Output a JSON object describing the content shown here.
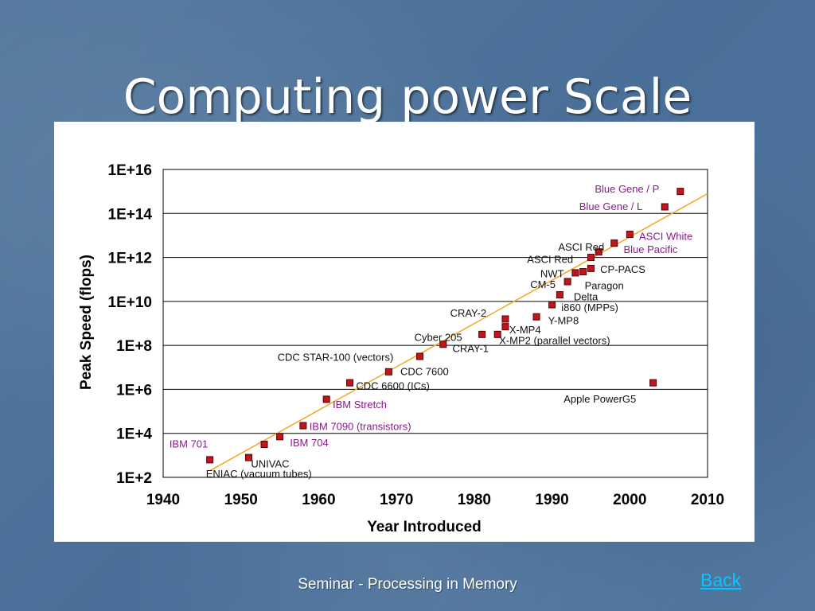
{
  "slide": {
    "title": "Computing power Scale",
    "footer": "Seminar - Processing in Memory",
    "back_label": "Back"
  },
  "colors": {
    "marker": "#c0151c",
    "trend": "#f5a623",
    "label_dark": "#111111",
    "label_purple": "#8b1a8b"
  },
  "chart_data": {
    "type": "scatter",
    "title": "",
    "xlabel": "Year Introduced",
    "ylabel": "Peak Speed (flops)",
    "xlim": [
      1940,
      2010
    ],
    "ylim_log10": [
      2,
      16
    ],
    "yscale": "log",
    "grid": "horizontal",
    "x_ticks": [
      "1940",
      "1950",
      "1960",
      "1970",
      "1980",
      "1990",
      "2000",
      "2010"
    ],
    "y_ticks": [
      "1E+2",
      "1E+4",
      "1E+6",
      "1E+8",
      "1E+10",
      "1E+12",
      "1E+14",
      "1E+16"
    ],
    "trend_line": {
      "from": [
        1946,
        2.3
      ],
      "to": [
        2010,
        14.9
      ]
    },
    "points": [
      {
        "x": 1946,
        "log10_y": 2.8
      },
      {
        "x": 1951,
        "log10_y": 2.9
      },
      {
        "x": 1953,
        "log10_y": 3.5
      },
      {
        "x": 1955,
        "log10_y": 3.85
      },
      {
        "x": 1958,
        "log10_y": 4.35
      },
      {
        "x": 1961,
        "log10_y": 5.55
      },
      {
        "x": 1964,
        "log10_y": 6.3
      },
      {
        "x": 1969,
        "log10_y": 6.8
      },
      {
        "x": 1973,
        "log10_y": 7.5
      },
      {
        "x": 1976,
        "log10_y": 8.05
      },
      {
        "x": 1981,
        "log10_y": 8.5
      },
      {
        "x": 1983,
        "log10_y": 8.5
      },
      {
        "x": 1984,
        "log10_y": 8.85
      },
      {
        "x": 1984,
        "log10_y": 9.2
      },
      {
        "x": 1988,
        "log10_y": 9.3
      },
      {
        "x": 1990,
        "log10_y": 9.85
      },
      {
        "x": 1991,
        "log10_y": 10.3
      },
      {
        "x": 1992,
        "log10_y": 10.9
      },
      {
        "x": 1993,
        "log10_y": 11.3
      },
      {
        "x": 1994,
        "log10_y": 11.35
      },
      {
        "x": 1995,
        "log10_y": 11.5
      },
      {
        "x": 1995,
        "log10_y": 12.0
      },
      {
        "x": 1996,
        "log10_y": 12.25
      },
      {
        "x": 1998,
        "log10_y": 12.65
      },
      {
        "x": 2000,
        "log10_y": 13.05
      },
      {
        "x": 2003,
        "log10_y": 6.3
      },
      {
        "x": 2004.5,
        "log10_y": 14.3
      },
      {
        "x": 2006.5,
        "log10_y": 15.0
      }
    ],
    "annotations": [
      {
        "text": "ENIAC (vacuum tubes)",
        "x": 1945.5,
        "log10_y": 2.15,
        "color": "dark"
      },
      {
        "text": "UNIVAC",
        "x": 1951.3,
        "log10_y": 2.6,
        "color": "dark"
      },
      {
        "text": "IBM 701",
        "x": 1940.8,
        "log10_y": 3.5,
        "color": "purple"
      },
      {
        "text": "IBM 704",
        "x": 1956.3,
        "log10_y": 3.55,
        "color": "purple"
      },
      {
        "text": "IBM 7090 (transistors)",
        "x": 1958.8,
        "log10_y": 4.3,
        "color": "purple"
      },
      {
        "text": "IBM Stretch",
        "x": 1961.8,
        "log10_y": 5.3,
        "color": "purple"
      },
      {
        "text": "CDC 6600 (ICs)",
        "x": 1964.8,
        "log10_y": 6.15,
        "color": "dark"
      },
      {
        "text": "CDC 7600",
        "x": 1970.5,
        "log10_y": 6.8,
        "color": "dark"
      },
      {
        "text": "CDC STAR-100 (vectors)",
        "x": 1954.7,
        "log10_y": 7.45,
        "color": "dark"
      },
      {
        "text": "CRAY-1",
        "x": 1977.2,
        "log10_y": 7.85,
        "color": "dark"
      },
      {
        "text": "Cyber 205",
        "x": 1972.3,
        "log10_y": 8.35,
        "color": "dark"
      },
      {
        "text": "X-MP2 (parallel vectors)",
        "x": 1983.2,
        "log10_y": 8.2,
        "color": "dark"
      },
      {
        "text": "X-MP4",
        "x": 1984.5,
        "log10_y": 8.7,
        "color": "dark"
      },
      {
        "text": "CRAY-2",
        "x": 1976.9,
        "log10_y": 9.45,
        "color": "dark"
      },
      {
        "text": "Y-MP8",
        "x": 1989.5,
        "log10_y": 9.1,
        "color": "dark"
      },
      {
        "text": "i860 (MPPs)",
        "x": 1991.2,
        "log10_y": 9.7,
        "color": "dark"
      },
      {
        "text": "Delta",
        "x": 1992.8,
        "log10_y": 10.2,
        "color": "dark"
      },
      {
        "text": "CM-5",
        "x": 1987.2,
        "log10_y": 10.75,
        "color": "dark"
      },
      {
        "text": "Paragon",
        "x": 1994.2,
        "log10_y": 10.7,
        "color": "dark"
      },
      {
        "text": "NWT",
        "x": 1988.5,
        "log10_y": 11.25,
        "color": "dark"
      },
      {
        "text": "CP-PACS",
        "x": 1996.2,
        "log10_y": 11.45,
        "color": "dark"
      },
      {
        "text": "ASCI Red",
        "x": 1986.8,
        "log10_y": 11.9,
        "color": "dark"
      },
      {
        "text": "ASCI Red",
        "x": 1990.8,
        "log10_y": 12.45,
        "color": "dark"
      },
      {
        "text": "Blue Pacific",
        "x": 1999.2,
        "log10_y": 12.35,
        "color": "purple"
      },
      {
        "text": "ASCI White",
        "x": 2001.2,
        "log10_y": 12.95,
        "color": "purple"
      },
      {
        "text": "Blue Gene / L",
        "x": 1993.5,
        "log10_y": 14.3,
        "color": "purple"
      },
      {
        "text": "Blue Gene / P",
        "x": 1995.5,
        "log10_y": 15.1,
        "color": "purple"
      },
      {
        "text": "Apple PowerG5",
        "x": 1991.5,
        "log10_y": 5.55,
        "color": "dark"
      }
    ]
  }
}
